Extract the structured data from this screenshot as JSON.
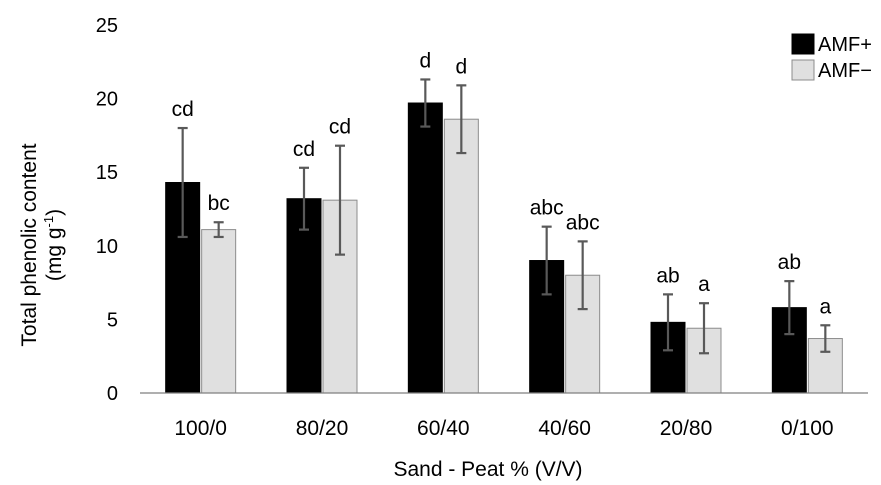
{
  "chart_data": {
    "type": "bar",
    "title": "",
    "xlabel": "Sand - Peat % (V/V)",
    "ylabel": "Total phenolic content",
    "ylabel_unit_main": "(mg g",
    "ylabel_unit_sup": "-1",
    "ylabel_unit_end": ")",
    "ylim": [
      0,
      25
    ],
    "yticks": [
      0,
      5,
      10,
      15,
      20,
      25
    ],
    "grid": false,
    "legend_position": "top-right",
    "categories": [
      "100/0",
      "80/20",
      "60/40",
      "40/60",
      "20/80",
      "0/100"
    ],
    "series": [
      {
        "name": "AMF+",
        "color": "#000000",
        "values": [
          14.3,
          13.2,
          19.7,
          9.0,
          4.8,
          5.8
        ],
        "errors": [
          3.7,
          2.1,
          1.6,
          2.3,
          1.9,
          1.8
        ],
        "labels": [
          "cd",
          "cd",
          "d",
          "abc",
          "ab",
          "ab"
        ]
      },
      {
        "name": "AMF−",
        "color": "#e0e0e0",
        "values": [
          11.1,
          13.1,
          18.6,
          8.0,
          4.4,
          3.7
        ],
        "errors": [
          0.5,
          3.7,
          2.3,
          2.3,
          1.7,
          0.9
        ],
        "labels": [
          "bc",
          "cd",
          "d",
          "abc",
          "a",
          "a"
        ]
      }
    ]
  }
}
